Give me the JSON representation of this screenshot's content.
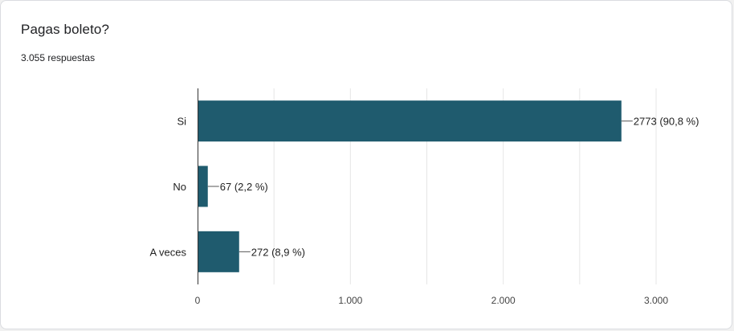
{
  "header": {
    "title": "Pagas boleto?",
    "responses": "3.055 respuestas"
  },
  "colors": {
    "bar": "#1f5b6e",
    "grid": "#e6e6e6",
    "axis": "#333333"
  },
  "chart_data": {
    "type": "bar",
    "orientation": "horizontal",
    "categories": [
      "Si",
      "No",
      "A veces"
    ],
    "values": [
      2773,
      67,
      272
    ],
    "data_labels": [
      "2773 (90,8 %)",
      "67 (2,2 %)",
      "272 (8,9 %)"
    ],
    "xlim": [
      0,
      3000
    ],
    "xticks": [
      0,
      1000,
      2000,
      3000
    ],
    "xtick_labels": [
      "0",
      "1.000",
      "2.000",
      "3.000"
    ],
    "grid": true
  }
}
